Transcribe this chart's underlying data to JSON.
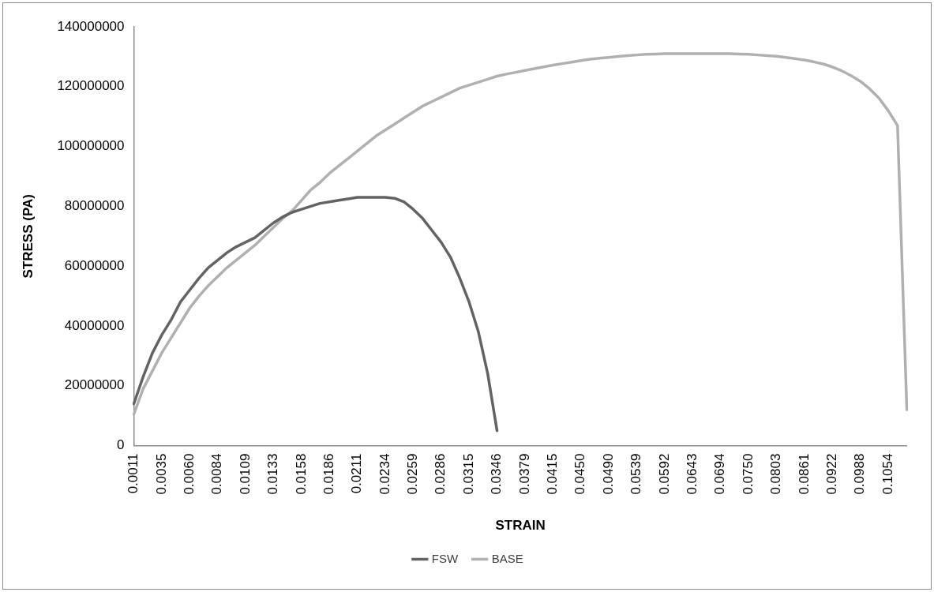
{
  "chart_data": {
    "type": "line",
    "xlabel": "STRAIN",
    "ylabel": "STRESS (PA)",
    "categories": [
      "0.0011",
      null,
      null,
      "0.0035",
      null,
      null,
      "0.0060",
      null,
      null,
      "0.0084",
      null,
      null,
      "0.0109",
      null,
      null,
      "0.0133",
      null,
      null,
      "0.0158",
      null,
      null,
      "0.0186",
      null,
      null,
      "0.0211",
      null,
      null,
      "0.0234",
      null,
      null,
      "0.0259",
      null,
      null,
      "0.0286",
      null,
      null,
      "0.0315",
      null,
      null,
      "0.0346",
      null,
      null,
      "0.0379",
      null,
      null,
      "0.0415",
      null,
      null,
      "0.0450",
      null,
      null,
      "0.0490",
      null,
      null,
      "0.0539",
      null,
      null,
      "0.0592",
      null,
      null,
      "0.0643",
      null,
      null,
      "0.0694",
      null,
      null,
      "0.0750",
      null,
      null,
      "0.0803",
      null,
      null,
      "0.0861",
      null,
      null,
      "0.0922",
      null,
      null,
      "0.0988",
      null,
      null,
      "0.1054",
      null,
      null
    ],
    "series": [
      {
        "name": "FSW",
        "color": "#636363",
        "values": [
          14000000,
          23000000,
          31000000,
          37000000,
          42000000,
          48000000,
          52000000,
          56000000,
          59500000,
          62000000,
          64500000,
          66500000,
          68000000,
          69500000,
          72000000,
          74500000,
          76500000,
          78000000,
          79000000,
          80000000,
          81000000,
          81500000,
          82000000,
          82500000,
          83000000,
          83000000,
          83000000,
          83000000,
          82700000,
          81500000,
          79000000,
          76000000,
          72000000,
          68000000,
          63000000,
          56000000,
          48000000,
          38000000,
          24000000,
          5000000,
          null,
          null,
          null,
          null,
          null,
          null,
          null,
          null,
          null,
          null,
          null,
          null,
          null,
          null,
          null,
          null,
          null,
          null,
          null,
          null,
          null,
          null,
          null,
          null,
          null,
          null,
          null,
          null,
          null,
          null,
          null,
          null,
          null,
          null,
          null,
          null,
          null,
          null,
          null,
          null,
          null,
          null,
          null,
          null
        ]
      },
      {
        "name": "BASE",
        "color": "#b0b0b0",
        "values": [
          10500000,
          19000000,
          25000000,
          31000000,
          36000000,
          41000000,
          46000000,
          50000000,
          53500000,
          56500000,
          59500000,
          62000000,
          64500000,
          67000000,
          70000000,
          73000000,
          76000000,
          78500000,
          82000000,
          85500000,
          88000000,
          91000000,
          93500000,
          96000000,
          98500000,
          101000000,
          103500000,
          105500000,
          107500000,
          109500000,
          111500000,
          113500000,
          115000000,
          116500000,
          118000000,
          119500000,
          120500000,
          121500000,
          122500000,
          123500000,
          124200000,
          124800000,
          125400000,
          126000000,
          126600000,
          127200000,
          127700000,
          128200000,
          128700000,
          129200000,
          129500000,
          129800000,
          130100000,
          130400000,
          130600000,
          130800000,
          130900000,
          131000000,
          131000000,
          131000000,
          131000000,
          131000000,
          131000000,
          131000000,
          131000000,
          130900000,
          130800000,
          130600000,
          130400000,
          130200000,
          129800000,
          129400000,
          128900000,
          128300000,
          127600000,
          126600000,
          125300000,
          123700000,
          121800000,
          119300000,
          116200000,
          112000000,
          107000000,
          12000000
        ]
      }
    ],
    "ylim": [
      0,
      140000000
    ],
    "yticks": [
      0,
      20000000,
      40000000,
      60000000,
      80000000,
      100000000,
      120000000,
      140000000
    ],
    "grid": false,
    "legend": "bottom",
    "marker": "none"
  }
}
